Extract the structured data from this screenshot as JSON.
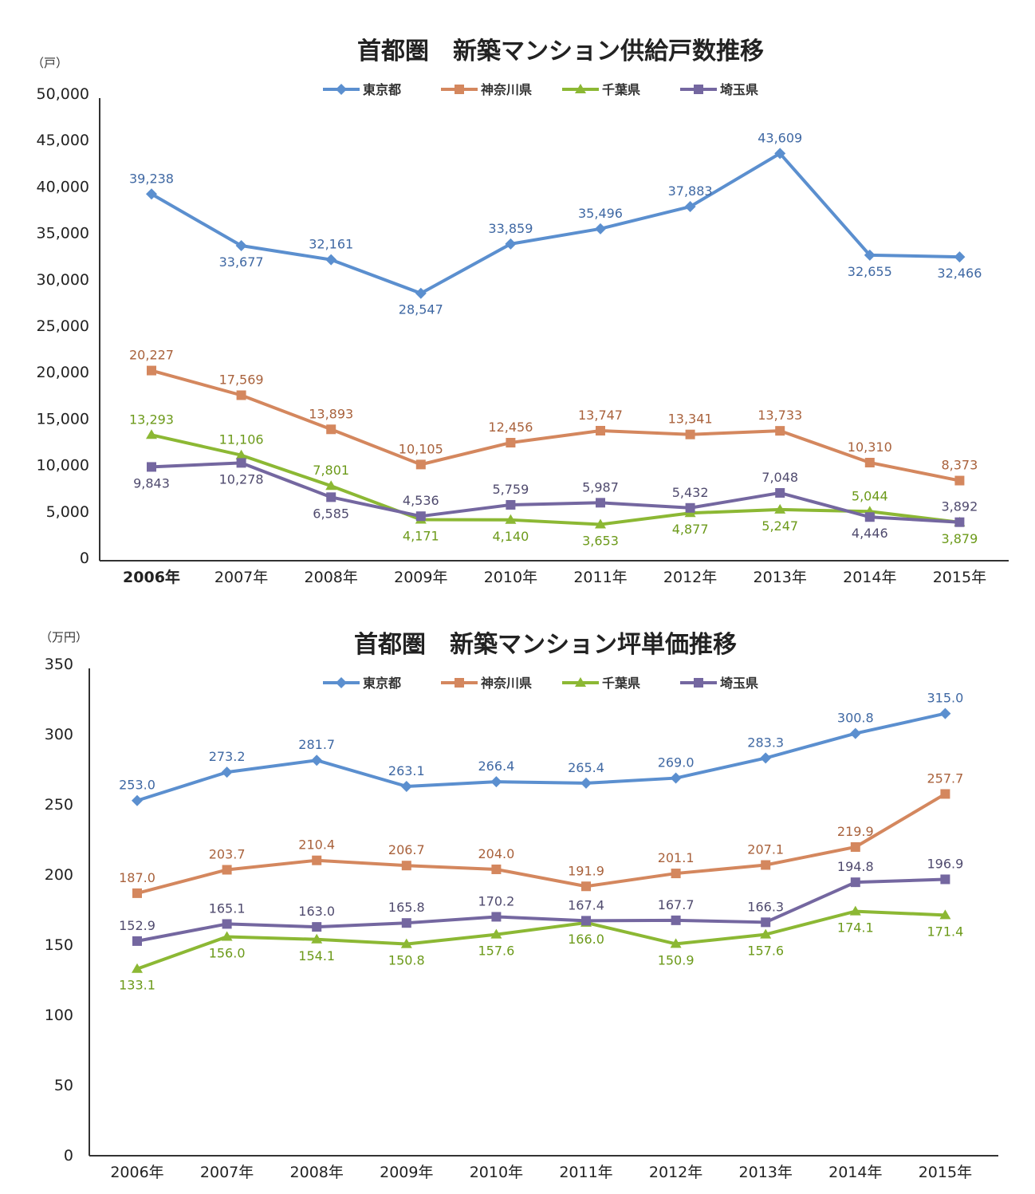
{
  "legend_colors": {
    "tokyo": "#5b8fcf",
    "kanagawa": "#d4875e",
    "chiba": "#8cb834",
    "saitama": "#7467a0"
  },
  "chart_data": [
    {
      "type": "line",
      "title": "首都圏　新築マンション供給戸数推移",
      "ylabel": "（戸）",
      "xlabel": "",
      "categories": [
        "2006年",
        "2007年",
        "2008年",
        "2009年",
        "2010年",
        "2011年",
        "2012年",
        "2013年",
        "2014年",
        "2015年"
      ],
      "ylim": [
        0,
        50000
      ],
      "yticks": [
        "0",
        "5,000",
        "10,000",
        "15,000",
        "20,000",
        "25,000",
        "30,000",
        "35,000",
        "40,000",
        "45,000",
        "50,000"
      ],
      "grid": false,
      "legend_position": "top-center",
      "series": [
        {
          "name": "東京都",
          "marker": "diamond",
          "values": [
            39238,
            33677,
            32161,
            28547,
            33859,
            35496,
            37883,
            43609,
            32655,
            32466
          ],
          "labels": [
            "39,238",
            "33,677",
            "32,161",
            "28,547",
            "33,859",
            "35,496",
            "37,883",
            "43,609",
            "32,655",
            "32,466"
          ]
        },
        {
          "name": "神奈川県",
          "marker": "square",
          "values": [
            20227,
            17569,
            13893,
            10105,
            12456,
            13747,
            13341,
            13733,
            10310,
            8373
          ],
          "labels": [
            "20,227",
            "17,569",
            "13,893",
            "10,105",
            "12,456",
            "13,747",
            "13,341",
            "13,733",
            "10,310",
            "8,373"
          ]
        },
        {
          "name": "千葉県",
          "marker": "triangle",
          "values": [
            13293,
            11106,
            7801,
            4171,
            4140,
            3653,
            4877,
            5247,
            5044,
            3879
          ],
          "labels": [
            "13,293",
            "11,106",
            "7,801",
            "4,171",
            "4,140",
            "3,653",
            "4,877",
            "5,247",
            "5,044",
            "3,879"
          ]
        },
        {
          "name": "埼玉県",
          "marker": "square",
          "values": [
            9843,
            10278,
            6585,
            4536,
            5759,
            5987,
            5432,
            7048,
            4446,
            3892
          ],
          "labels": [
            "9,843",
            "10,278",
            "6,585",
            "4,536",
            "5,759",
            "5,987",
            "5,432",
            "7,048",
            "4,446",
            "3,892"
          ]
        }
      ]
    },
    {
      "type": "line",
      "title": "首都圏　新築マンション坪単価推移",
      "ylabel": "（万円）",
      "xlabel": "",
      "categories": [
        "2006年",
        "2007年",
        "2008年",
        "2009年",
        "2010年",
        "2011年",
        "2012年",
        "2013年",
        "2014年",
        "2015年"
      ],
      "ylim": [
        0,
        350
      ],
      "yticks": [
        "0",
        "50",
        "100",
        "150",
        "200",
        "250",
        "300",
        "350"
      ],
      "grid": false,
      "legend_position": "top-center",
      "series": [
        {
          "name": "東京都",
          "marker": "diamond",
          "values": [
            253.0,
            273.2,
            281.7,
            263.1,
            266.4,
            265.4,
            269.0,
            283.3,
            300.8,
            315.0
          ],
          "labels": [
            "253.0",
            "273.2",
            "281.7",
            "263.1",
            "266.4",
            "265.4",
            "269.0",
            "283.3",
            "300.8",
            "315.0"
          ]
        },
        {
          "name": "神奈川県",
          "marker": "square",
          "values": [
            187.0,
            203.7,
            210.4,
            206.7,
            204.0,
            191.9,
            201.1,
            207.1,
            219.9,
            257.7
          ],
          "labels": [
            "187.0",
            "203.7",
            "210.4",
            "206.7",
            "204.0",
            "191.9",
            "201.1",
            "207.1",
            "219.9",
            "257.7"
          ]
        },
        {
          "name": "千葉県",
          "marker": "triangle",
          "values": [
            133.1,
            156.0,
            154.1,
            150.8,
            157.6,
            166.0,
            150.9,
            157.6,
            174.1,
            171.4
          ],
          "labels": [
            "133.1",
            "156.0",
            "154.1",
            "150.8",
            "157.6",
            "166.0",
            "150.9",
            "157.6",
            "174.1",
            "171.4"
          ]
        },
        {
          "name": "埼玉県",
          "marker": "square",
          "values": [
            152.9,
            165.1,
            163.0,
            165.8,
            170.2,
            167.4,
            167.7,
            166.3,
            194.8,
            196.9
          ],
          "labels": [
            "152.9",
            "165.1",
            "163.0",
            "165.8",
            "170.2",
            "167.4",
            "167.7",
            "166.3",
            "194.8",
            "196.9"
          ]
        }
      ]
    }
  ]
}
